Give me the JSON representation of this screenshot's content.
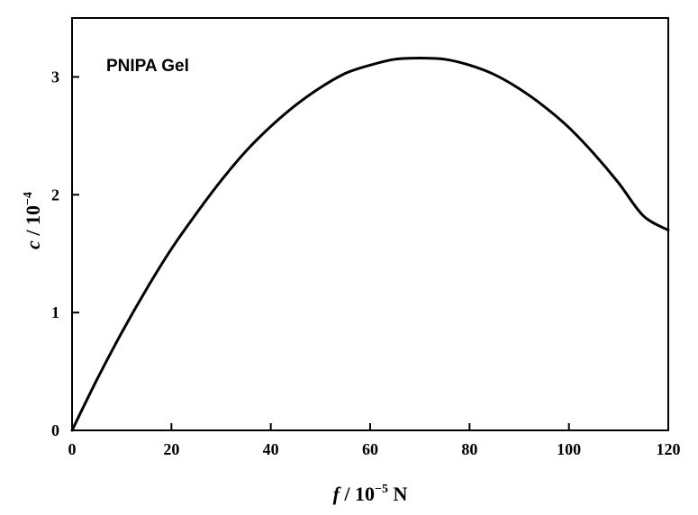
{
  "chart_data": {
    "type": "line",
    "title": "",
    "annotation": "PNIPA Gel",
    "xlabel": {
      "var": "f",
      "rest": " / 10",
      "exp": "−5",
      "unit": " N"
    },
    "ylabel": {
      "var": "c",
      "rest": " / 10",
      "exp": "−4"
    },
    "xlim": [
      0,
      120
    ],
    "ylim": [
      0,
      3.5
    ],
    "xticks": [
      0,
      20,
      40,
      60,
      80,
      100,
      120
    ],
    "yticks": [
      0,
      1,
      2,
      3
    ],
    "xtick_labels": [
      "0",
      "20",
      "40",
      "60",
      "80",
      "100",
      "120"
    ],
    "ytick_labels": [
      "0",
      "1",
      "2",
      "3"
    ],
    "grid": false,
    "series": [
      {
        "color": "#000000",
        "x": [
          0,
          5,
          10,
          15,
          20,
          25,
          30,
          35,
          40,
          45,
          50,
          55,
          60,
          65,
          70,
          75,
          80,
          85,
          90,
          95,
          100,
          105,
          110,
          115,
          120
        ],
        "y": [
          0,
          0.43,
          0.83,
          1.2,
          1.54,
          1.84,
          2.12,
          2.37,
          2.58,
          2.76,
          2.91,
          3.03,
          3.1,
          3.15,
          3.16,
          3.15,
          3.1,
          3.02,
          2.9,
          2.75,
          2.57,
          2.35,
          2.1,
          1.82,
          1.7
        ]
      }
    ]
  }
}
